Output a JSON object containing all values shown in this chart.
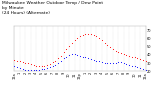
{
  "title": "Milwaukee Weather Outdoor Temp / Dew Point\nby Minute\n(24 Hours) (Alternate)",
  "title_fontsize": 3.2,
  "bg_color": "#ffffff",
  "grid_color": "#c8c8c8",
  "temp_color": "#ff0000",
  "dew_color": "#0000ff",
  "ylim": [
    20,
    75
  ],
  "xlim": [
    0,
    1440
  ],
  "xlabel_fontsize": 2.5,
  "ylabel_fontsize": 2.5,
  "ytick_vals": [
    20,
    30,
    40,
    50,
    60,
    70
  ],
  "ytick_labels": [
    "20",
    "30",
    "40",
    "50",
    "60",
    "70"
  ],
  "xtick_vals": [
    0,
    60,
    120,
    180,
    240,
    300,
    360,
    420,
    480,
    540,
    600,
    660,
    720,
    780,
    840,
    900,
    960,
    1020,
    1080,
    1140,
    1200,
    1260,
    1320,
    1380,
    1440
  ],
  "xtick_labels": [
    "12a",
    "1",
    "2",
    "3",
    "4",
    "5",
    "6",
    "7",
    "8",
    "9",
    "10",
    "11",
    "12p",
    "1",
    "2",
    "3",
    "4",
    "5",
    "6",
    "7",
    "8",
    "9",
    "10",
    "11",
    "12a"
  ],
  "temp_x": [
    0,
    30,
    60,
    90,
    120,
    150,
    180,
    210,
    240,
    270,
    300,
    330,
    360,
    390,
    420,
    450,
    480,
    510,
    540,
    570,
    600,
    630,
    660,
    690,
    720,
    750,
    780,
    810,
    840,
    870,
    900,
    930,
    960,
    990,
    1020,
    1050,
    1080,
    1110,
    1140,
    1170,
    1200,
    1230,
    1260,
    1290,
    1320,
    1350,
    1380,
    1410,
    1440
  ],
  "temp_y": [
    34,
    33,
    32,
    31,
    30,
    30,
    29,
    28,
    27,
    27,
    27,
    27,
    28,
    29,
    31,
    33,
    36,
    39,
    43,
    47,
    51,
    55,
    58,
    61,
    63,
    64,
    65,
    65,
    65,
    64,
    63,
    61,
    58,
    55,
    52,
    49,
    47,
    45,
    44,
    42,
    41,
    40,
    39,
    38,
    37,
    36,
    35,
    34,
    33
  ],
  "dew_x": [
    0,
    30,
    60,
    90,
    120,
    150,
    180,
    210,
    240,
    270,
    300,
    330,
    360,
    390,
    420,
    450,
    480,
    510,
    540,
    570,
    600,
    630,
    660,
    690,
    720,
    750,
    780,
    810,
    840,
    870,
    900,
    930,
    960,
    990,
    1020,
    1050,
    1080,
    1110,
    1140,
    1170,
    1200,
    1230,
    1260,
    1290,
    1320,
    1350,
    1380,
    1410,
    1440
  ],
  "dew_y": [
    26,
    25,
    24,
    23,
    22,
    22,
    22,
    22,
    22,
    22,
    23,
    23,
    24,
    25,
    26,
    28,
    30,
    33,
    36,
    38,
    40,
    41,
    41,
    40,
    39,
    38,
    37,
    36,
    35,
    34,
    33,
    32,
    31,
    30,
    30,
    30,
    30,
    30,
    31,
    31,
    30,
    29,
    28,
    27,
    26,
    25,
    24,
    23,
    22
  ]
}
